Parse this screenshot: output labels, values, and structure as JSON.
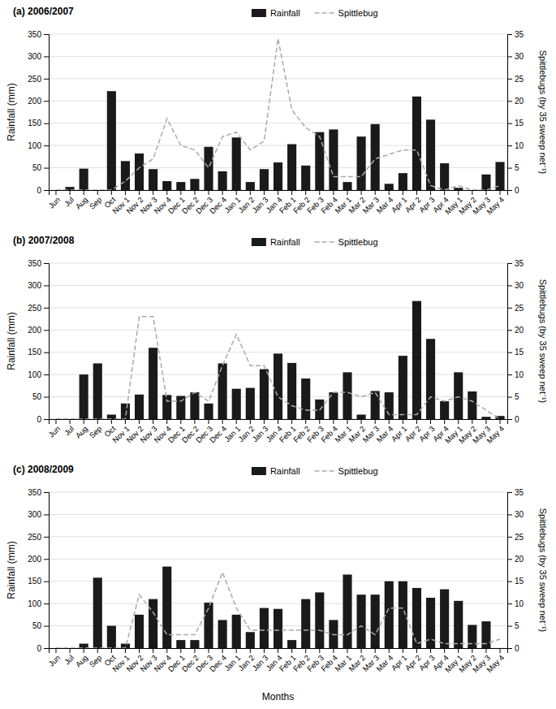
{
  "chart_data": [
    {
      "type": "bar",
      "title": "(a) 2006/2007",
      "categories": [
        "Jun",
        "Jul",
        "Aug",
        "Sep",
        "Oct",
        "Nov 1",
        "Nov 2",
        "Nov 3",
        "Nov 4",
        "Dec 1",
        "Dec 2",
        "Dec 3",
        "Dec 4",
        "Jan 1",
        "Jan 2",
        "Jan 3",
        "Jan 4",
        "Feb 1",
        "Feb 2",
        "Feb 3",
        "Feb 4",
        "Mar 1",
        "Mar 2",
        "Mar 3",
        "Mar 4",
        "Apr 1",
        "Apr 2",
        "Apr 3",
        "Apr 4",
        "May 1",
        "May 2",
        "May 3",
        "May 4"
      ],
      "series": [
        {
          "name": "Rainfall",
          "type": "bar",
          "color": "#1a1a1a",
          "values": [
            0,
            7,
            48,
            0,
            222,
            65,
            82,
            47,
            20,
            18,
            25,
            97,
            42,
            118,
            18,
            47,
            62,
            103,
            55,
            130,
            136,
            18,
            120,
            148,
            14,
            38,
            210,
            158,
            60,
            5,
            0,
            35,
            63
          ]
        },
        {
          "name": "Spittlebug",
          "type": "line",
          "axis": "y2",
          "color": "#aaaaaa",
          "line_style": "dashed",
          "values": [
            0,
            0,
            0,
            0,
            0,
            2,
            5,
            7,
            16,
            10,
            9,
            5,
            12,
            13,
            9,
            11,
            34,
            18,
            14,
            12,
            3,
            3,
            3,
            7,
            8,
            9,
            9,
            1,
            0,
            1,
            0,
            0,
            1
          ]
        }
      ],
      "ylabel": "Rainfall (mm)",
      "y2label": "Spittlebugs (by 35 sweep net⁻¹)",
      "ylim": [
        0,
        350
      ],
      "yticks": [
        0,
        50,
        100,
        150,
        200,
        250,
        300,
        350
      ],
      "y2lim": [
        0,
        35
      ],
      "y2ticks": [
        0,
        5,
        10,
        15,
        20,
        25,
        30,
        35
      ],
      "grid": true,
      "legend": "top"
    },
    {
      "type": "bar",
      "title": "(b) 2007/2008",
      "categories": [
        "Jun",
        "Jul",
        "Aug",
        "Sep",
        "Oct",
        "Nov 1",
        "Nov 2",
        "Nov 3",
        "Nov 4",
        "Dec 1",
        "Dec 2",
        "Dec 3",
        "Dec 4",
        "Jan 1",
        "Jan 2",
        "Jan 3",
        "Jan 4",
        "Feb 1",
        "Feb 2",
        "Feb 3",
        "Feb 4",
        "Mar 1",
        "Mar 2",
        "Mar 3",
        "Mar 4",
        "Apr 1",
        "Apr 2",
        "Apr 3",
        "Apr 4",
        "May 1",
        "May 2",
        "May 3",
        "May 4"
      ],
      "series": [
        {
          "name": "Rainfall",
          "type": "bar",
          "color": "#1a1a1a",
          "values": [
            0,
            0,
            100,
            125,
            10,
            35,
            55,
            160,
            54,
            52,
            60,
            35,
            125,
            68,
            70,
            112,
            147,
            126,
            91,
            44,
            60,
            105,
            10,
            63,
            60,
            142,
            265,
            180,
            40,
            105,
            62,
            5,
            7
          ]
        },
        {
          "name": "Spittlebug",
          "type": "line",
          "axis": "y2",
          "color": "#aaaaaa",
          "line_style": "dashed",
          "values": [
            0,
            0,
            0,
            0,
            0,
            0,
            23,
            23,
            4,
            4,
            6,
            4,
            12,
            19,
            12,
            12,
            5,
            3,
            2,
            2,
            6,
            6,
            5,
            6,
            1,
            1,
            1,
            5,
            4,
            5,
            4,
            2,
            0
          ]
        }
      ],
      "ylabel": "Rainfall (mm)",
      "y2label": "Spittlebugs (by 35 sweep net⁻¹)",
      "ylim": [
        0,
        350
      ],
      "yticks": [
        0,
        50,
        100,
        150,
        200,
        250,
        300,
        350
      ],
      "y2lim": [
        0,
        35
      ],
      "y2ticks": [
        0,
        5,
        10,
        15,
        20,
        25,
        30,
        35
      ],
      "grid": true,
      "legend": "top"
    },
    {
      "type": "bar",
      "title": "(c) 2008/2009",
      "categories": [
        "Jun",
        "Jul",
        "Aug",
        "Sep",
        "Oct",
        "Nov 1",
        "Nov 2",
        "Nov 3",
        "Nov 4",
        "Dec 1",
        "Dec 2",
        "Dec 3",
        "Dec 4",
        "Jan 1",
        "Jan 2",
        "Jan 3",
        "Jan 4",
        "Feb 1",
        "Feb 2",
        "Feb 3",
        "Feb 4",
        "Mar 1",
        "Mar 2",
        "Mar 3",
        "Mar 4",
        "Apr 1",
        "Apr 2",
        "Apr 3",
        "Apr 4",
        "May 1",
        "May 2",
        "May 3",
        "May 4"
      ],
      "series": [
        {
          "name": "Rainfall",
          "type": "bar",
          "color": "#1a1a1a",
          "values": [
            0,
            0,
            10,
            158,
            50,
            10,
            75,
            110,
            183,
            18,
            18,
            102,
            63,
            75,
            36,
            90,
            88,
            18,
            110,
            125,
            63,
            165,
            120,
            120,
            150,
            150,
            135,
            113,
            132,
            106,
            52,
            60,
            0
          ]
        },
        {
          "name": "Spittlebug",
          "type": "line",
          "axis": "y2",
          "color": "#aaaaaa",
          "line_style": "dashed",
          "values": [
            0,
            0,
            0,
            0,
            0,
            0,
            12,
            8,
            3,
            3,
            3,
            9,
            17,
            9,
            4,
            4,
            4,
            4,
            4,
            4,
            3,
            3,
            5,
            3,
            9,
            9,
            1,
            2,
            1,
            1,
            1,
            1,
            2
          ]
        }
      ],
      "xlabel": "Months",
      "ylabel": "Rainfall (mm)",
      "y2label": "Spittlebugs (by 35 sweep net⁻¹)",
      "ylim": [
        0,
        350
      ],
      "yticks": [
        0,
        50,
        100,
        150,
        200,
        250,
        300,
        350
      ],
      "y2lim": [
        0,
        35
      ],
      "y2ticks": [
        0,
        5,
        10,
        15,
        20,
        25,
        30,
        35
      ],
      "grid": true,
      "legend": "top"
    }
  ]
}
